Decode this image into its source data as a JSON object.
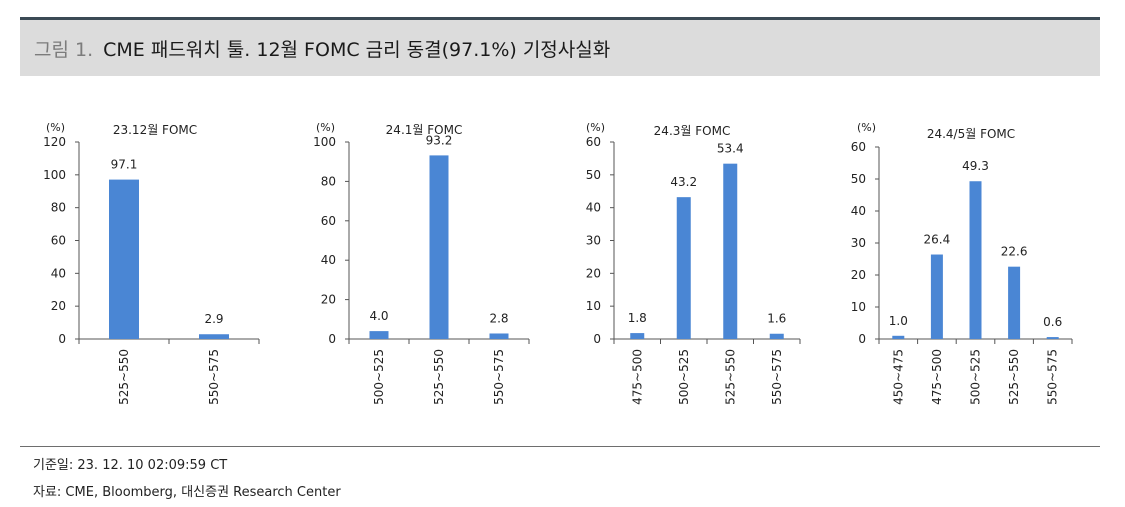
{
  "header": {
    "fig_num": "그림 1.",
    "title": "CME 패드워치 툴. 12월 FOMC 금리 동결(97.1%) 기정사실화"
  },
  "footer": {
    "date_note": "기준일: 23. 12. 10 02:09:59 CT",
    "source_note": "자료: CME, Bloomberg, 대신증권 Research Center"
  },
  "colors": {
    "bar": "#4a86d4",
    "axis": "#555555",
    "title_band": "#dcdcdc",
    "top_rule": "#3b4a55"
  },
  "chart_data": [
    {
      "type": "bar",
      "title": "23.12월 FOMC",
      "ylabel": "(%)",
      "ylim": [
        0,
        120
      ],
      "yticks": [
        0,
        20,
        40,
        60,
        80,
        100,
        120
      ],
      "categories": [
        "525~550",
        "550~575"
      ],
      "values": [
        97.1,
        2.9
      ],
      "data_labels": [
        "97.1",
        "2.9"
      ],
      "grid": false
    },
    {
      "type": "bar",
      "title": "24.1월 FOMC",
      "ylabel": "(%)",
      "ylim": [
        0,
        100
      ],
      "yticks": [
        0,
        20,
        40,
        60,
        80,
        100
      ],
      "categories": [
        "500~525",
        "525~550",
        "550~575"
      ],
      "values": [
        4.0,
        93.2,
        2.8
      ],
      "data_labels": [
        "4.0",
        "93.2",
        "2.8"
      ],
      "grid": false
    },
    {
      "type": "bar",
      "title": "24.3월 FOMC",
      "ylabel": "(%)",
      "ylim": [
        0,
        60
      ],
      "yticks": [
        0,
        10,
        20,
        30,
        40,
        50,
        60
      ],
      "categories": [
        "475~500",
        "500~525",
        "525~550",
        "550~575"
      ],
      "values": [
        1.8,
        43.2,
        53.4,
        1.6
      ],
      "data_labels": [
        "1.8",
        "43.2",
        "53.4",
        "1.6"
      ],
      "grid": false
    },
    {
      "type": "bar",
      "title": "24.4/5월 FOMC",
      "ylabel": "(%)",
      "ylim": [
        0,
        60
      ],
      "yticks": [
        0,
        10,
        20,
        30,
        40,
        50,
        60
      ],
      "categories": [
        "450~475",
        "475~500",
        "500~525",
        "525~550",
        "550~575"
      ],
      "values": [
        1.0,
        26.4,
        49.3,
        22.6,
        0.6
      ],
      "data_labels": [
        "1.0",
        "26.4",
        "49.3",
        "22.6",
        "0.6"
      ],
      "grid": false
    }
  ]
}
